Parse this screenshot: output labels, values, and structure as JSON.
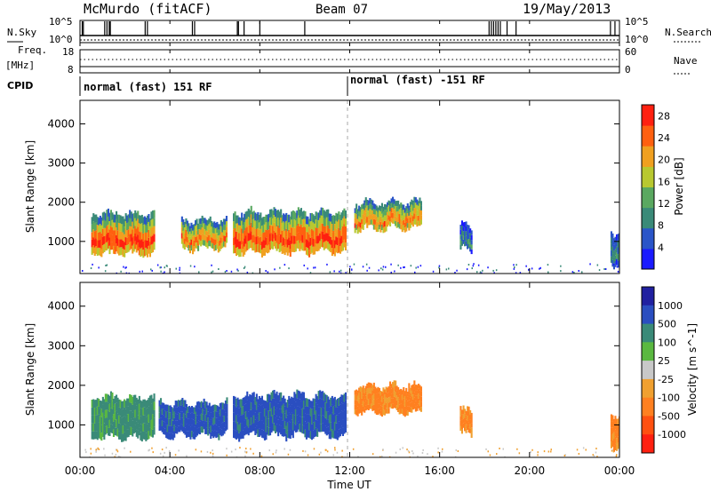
{
  "header": {
    "station": "McMurdo (fitACF)",
    "beam": "Beam 07",
    "date": "19/May/2013"
  },
  "noise_panel": {
    "left_label": "N.Sky",
    "right_label": "N.Search",
    "ticks": [
      "10^5",
      "10^0"
    ],
    "ticks_right": [
      "10^5",
      "10^0"
    ]
  },
  "freq_panel": {
    "left_label_line1": "Freq.",
    "left_label_line2": "[MHz]",
    "ticks_left": [
      "18",
      "8"
    ],
    "right_label": "Nave",
    "ticks_right": [
      "60",
      "0"
    ]
  },
  "cpid_panel": {
    "label": "CPID",
    "segments": [
      {
        "text": "normal (fast) 151 RF",
        "start_hour": 0
      },
      {
        "text": "normal (fast) -151 RF",
        "start_hour": 12
      }
    ]
  },
  "time_axis": {
    "label": "Time UT",
    "ticks": [
      "00:00",
      "04:00",
      "08:00",
      "12:00",
      "16:00",
      "20:00",
      "00:00"
    ]
  },
  "chart_data": [
    {
      "type": "heatmap",
      "title": "",
      "xlabel": "Time UT",
      "ylabel": "Slant Range [km]",
      "x_range_hours": [
        0,
        24
      ],
      "ylim": [
        180,
        4600
      ],
      "yticks": [
        "1000",
        "2000",
        "3000",
        "4000"
      ],
      "colorbar_label": "Power [dB]",
      "colorbar_ticks": [
        "4",
        "8",
        "12",
        "16",
        "20",
        "24",
        "28"
      ],
      "colorbar_range": [
        0,
        30
      ],
      "colors": [
        "#1a1aff",
        "#2a55c8",
        "#3a8a78",
        "#5aa860",
        "#b8c830",
        "#f0a020",
        "#ff6010",
        "#ff2010"
      ],
      "echo_regions": [
        {
          "start_hour": 0.5,
          "end_hour": 3.3,
          "range_min_km": 650,
          "range_max_km": 1650,
          "peak_db": 28
        },
        {
          "start_hour": 4.5,
          "end_hour": 6.5,
          "range_min_km": 800,
          "range_max_km": 1500,
          "peak_db": 26
        },
        {
          "start_hour": 6.8,
          "end_hour": 11.8,
          "range_min_km": 700,
          "range_max_km": 1700,
          "peak_db": 28
        },
        {
          "start_hour": 12.2,
          "end_hour": 15.2,
          "range_min_km": 1300,
          "range_max_km": 1950,
          "peak_db": 24
        },
        {
          "start_hour": 16.9,
          "end_hour": 17.4,
          "range_min_km": 750,
          "range_max_km": 1350,
          "peak_db": 10
        },
        {
          "start_hour": 23.6,
          "end_hour": 24.0,
          "range_min_km": 400,
          "range_max_km": 1200,
          "peak_db": 8
        }
      ]
    },
    {
      "type": "heatmap",
      "title": "",
      "xlabel": "Time UT",
      "ylabel": "Slant Range [km]",
      "x_range_hours": [
        0,
        24
      ],
      "ylim": [
        180,
        4600
      ],
      "yticks": [
        "1000",
        "2000",
        "3000",
        "4000"
      ],
      "colorbar_label": "Velocity [m s^-1]",
      "colorbar_ticks": [
        "1000",
        "500",
        "100",
        "25",
        "-25",
        "-100",
        "-500",
        "-1000"
      ],
      "colors": [
        "#2020a0",
        "#2a4ec0",
        "#3a8a78",
        "#5ab840",
        "#c8c8c8",
        "#f0a030",
        "#ff8020",
        "#ff5010",
        "#ff2010"
      ],
      "echo_regions": [
        {
          "start_hour": 0.5,
          "end_hour": 3.3,
          "range_min_km": 650,
          "range_max_km": 1650,
          "velocity": "100 to 500"
        },
        {
          "start_hour": 3.5,
          "end_hour": 6.5,
          "range_min_km": 700,
          "range_max_km": 1500,
          "velocity": "500 to 1000"
        },
        {
          "start_hour": 6.8,
          "end_hour": 11.8,
          "range_min_km": 700,
          "range_max_km": 1700,
          "velocity": "500 to 1000"
        },
        {
          "start_hour": 12.2,
          "end_hour": 15.2,
          "range_min_km": 1300,
          "range_max_km": 1950,
          "velocity": "-100 to -500"
        },
        {
          "start_hour": 16.9,
          "end_hour": 17.4,
          "range_min_km": 750,
          "range_max_km": 1350,
          "velocity": "-100 to -500"
        },
        {
          "start_hour": 23.6,
          "end_hour": 24.0,
          "range_min_km": 400,
          "range_max_km": 1200,
          "velocity": "-100 to -500"
        }
      ]
    }
  ]
}
